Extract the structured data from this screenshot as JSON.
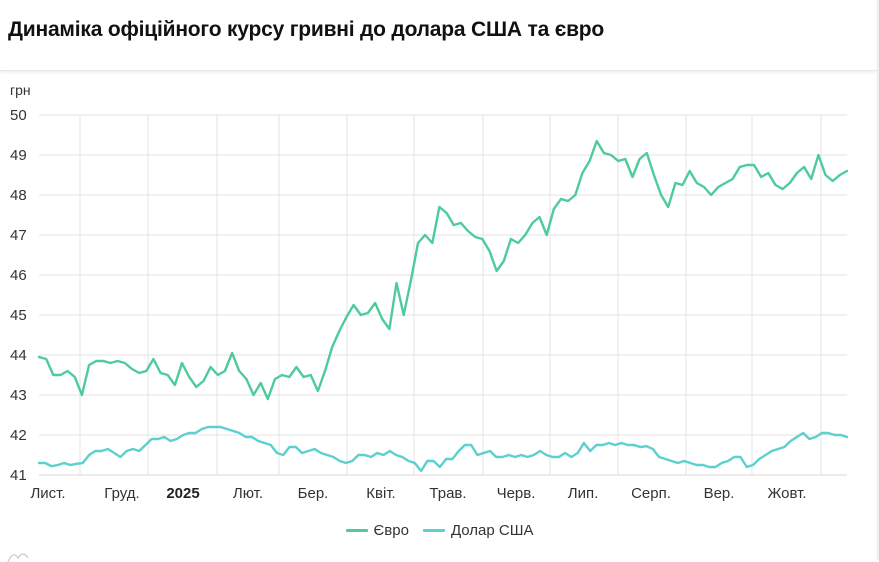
{
  "header": {
    "title": "Динаміка офіційного курсу гривні до долара США та євро"
  },
  "colors": {
    "euro": "#4ecb9b",
    "usd": "#5ccfcf",
    "grid": "#e3e3e3",
    "axis": "#d9d9d9"
  },
  "legend": {
    "items": [
      {
        "label": "Євро",
        "color": "#4ecb9b"
      },
      {
        "label": "Долар США",
        "color": "#5ccfcf"
      }
    ]
  },
  "chart_data": {
    "type": "line",
    "title": "Динаміка офіційного курсу гривні до долара США та євро",
    "xlabel": "",
    "ylabel": "грн",
    "ylim": [
      41,
      50
    ],
    "yticks": [
      41,
      42,
      43,
      44,
      45,
      46,
      47,
      48,
      49,
      50
    ],
    "grid": true,
    "legend_position": "bottom",
    "x_tick_labels": [
      "Лист.",
      "Груд.",
      "2025",
      "Лют.",
      "Бер.",
      "Квіт.",
      "Трав.",
      "Черв.",
      "Лип.",
      "Серп.",
      "Вер.",
      "Жовт."
    ],
    "x_tick_bold": [
      false,
      false,
      true,
      false,
      false,
      false,
      false,
      false,
      false,
      false,
      false,
      false
    ],
    "x_range": [
      "2024-10-30",
      "2025-10-30"
    ],
    "series": [
      {
        "name": "Євро",
        "color": "#4ecb9b",
        "values": [
          43.95,
          43.9,
          43.5,
          43.5,
          43.6,
          43.45,
          43.0,
          43.75,
          43.85,
          43.85,
          43.8,
          43.85,
          43.8,
          43.65,
          43.55,
          43.6,
          43.9,
          43.55,
          43.5,
          43.25,
          43.8,
          43.45,
          43.2,
          43.35,
          43.7,
          43.5,
          43.6,
          44.05,
          43.6,
          43.4,
          43.0,
          43.3,
          42.9,
          43.4,
          43.5,
          43.45,
          43.7,
          43.45,
          43.5,
          43.1,
          43.6,
          44.2,
          44.6,
          44.95,
          45.25,
          45.0,
          45.05,
          45.3,
          44.9,
          44.65,
          45.8,
          45.0,
          45.85,
          46.8,
          47.0,
          46.8,
          47.7,
          47.55,
          47.25,
          47.3,
          47.1,
          46.95,
          46.9,
          46.6,
          46.1,
          46.35,
          46.9,
          46.8,
          47.0,
          47.3,
          47.45,
          47.0,
          47.65,
          47.9,
          47.85,
          48.0,
          48.55,
          48.85,
          49.35,
          49.05,
          49.0,
          48.85,
          48.9,
          48.45,
          48.9,
          49.05,
          48.5,
          48.0,
          47.7,
          48.3,
          48.25,
          48.6,
          48.3,
          48.2,
          48.0,
          48.2,
          48.3,
          48.4,
          48.7,
          48.75,
          48.75,
          48.45,
          48.55,
          48.25,
          48.15,
          48.3,
          48.55,
          48.7,
          48.4,
          49.0,
          48.5,
          48.35,
          48.5,
          48.6
        ]
      },
      {
        "name": "Долар США",
        "color": "#5ccfcf",
        "values": [
          41.3,
          41.3,
          41.22,
          41.25,
          41.3,
          41.25,
          41.28,
          41.3,
          41.5,
          41.6,
          41.6,
          41.65,
          41.55,
          41.45,
          41.6,
          41.65,
          41.6,
          41.75,
          41.9,
          41.9,
          41.95,
          41.85,
          41.9,
          42.0,
          42.05,
          42.05,
          42.15,
          42.2,
          42.2,
          42.2,
          42.15,
          42.1,
          42.05,
          41.95,
          41.95,
          41.85,
          41.8,
          41.75,
          41.55,
          41.5,
          41.7,
          41.7,
          41.55,
          41.6,
          41.65,
          41.55,
          41.5,
          41.45,
          41.35,
          41.3,
          41.35,
          41.5,
          41.5,
          41.45,
          41.55,
          41.5,
          41.6,
          41.5,
          41.45,
          41.35,
          41.3,
          41.1,
          41.35,
          41.35,
          41.2,
          41.4,
          41.4,
          41.6,
          41.75,
          41.75,
          41.5,
          41.55,
          41.6,
          41.45,
          41.45,
          41.5,
          41.45,
          41.5,
          41.45,
          41.5,
          41.6,
          41.5,
          41.45,
          41.45,
          41.55,
          41.45,
          41.55,
          41.8,
          41.6,
          41.75,
          41.75,
          41.8,
          41.75,
          41.8,
          41.75,
          41.75,
          41.7,
          41.72,
          41.65,
          41.45,
          41.4,
          41.35,
          41.3,
          41.35,
          41.3,
          41.25,
          41.25,
          41.2,
          41.2,
          41.3,
          41.35,
          41.45,
          41.45,
          41.2,
          41.25,
          41.4,
          41.5,
          41.6,
          41.65,
          41.7,
          41.85,
          41.95,
          42.05,
          41.9,
          41.95,
          42.05,
          42.05,
          42.0,
          42.0,
          41.95
        ]
      }
    ]
  }
}
